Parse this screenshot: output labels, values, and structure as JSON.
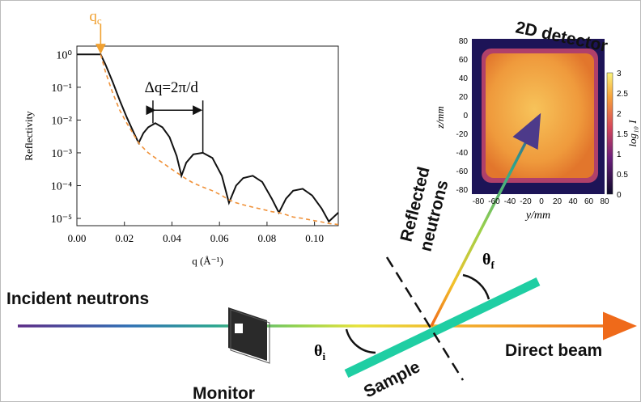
{
  "chart_data": {
    "type": "line",
    "y_label": "Reflectivity",
    "x_label": "q (Å⁻¹)",
    "log_y": true,
    "x": [
      0,
      0.01,
      0.012,
      0.015,
      0.018,
      0.021,
      0.024,
      0.026,
      0.028,
      0.03,
      0.033,
      0.036,
      0.039,
      0.042,
      0.044,
      0.046,
      0.049,
      0.053,
      0.057,
      0.061,
      0.064,
      0.067,
      0.07,
      0.074,
      0.078,
      0.082,
      0.085,
      0.088,
      0.091,
      0.095,
      0.099,
      0.103,
      0.106,
      0.11
    ],
    "series": [
      {
        "color": "#111111",
        "style": "solid",
        "values": [
          1,
          1,
          0.5,
          0.15,
          0.04,
          0.012,
          0.004,
          0.002,
          0.004,
          0.006,
          0.008,
          0.006,
          0.003,
          0.0008,
          0.0002,
          0.0005,
          0.0009,
          0.001,
          0.0007,
          0.0002,
          3e-05,
          0.0001,
          0.00017,
          0.0002,
          0.00013,
          4e-05,
          1.5e-05,
          4e-05,
          7e-05,
          8e-05,
          5e-05,
          2e-05,
          8e-06,
          1.5e-05
        ]
      },
      {
        "color": "#f0923a",
        "style": "dashed",
        "values": [
          null,
          1,
          0.3,
          0.07,
          0.02,
          0.008,
          0.0035,
          0.002,
          0.0014,
          0.001,
          0.0007,
          0.0005,
          0.00035,
          0.00025,
          0.0002,
          0.00016,
          0.00012,
          9e-05,
          7e-05,
          5e-05,
          3.7e-05,
          3e-05,
          2.6e-05,
          2.2e-05,
          1.9e-05,
          1.6e-05,
          1.5e-05,
          1.3e-05,
          1.1e-05,
          1e-05,
          8.8e-06,
          7.8e-06,
          7e-06,
          6.5e-06
        ]
      }
    ],
    "xlim": [
      0,
      0.11
    ],
    "ylim": [
      6e-06,
      1.8
    ],
    "xticks": [
      {
        "value": 0,
        "label": "0.00"
      },
      0.02,
      0.04,
      0.06,
      0.08,
      {
        "value": 0.1,
        "label": "0.10"
      }
    ],
    "yticks": [
      {
        "value": 1,
        "label": "10⁰"
      },
      {
        "value": 0.1,
        "label": "10⁻¹"
      },
      {
        "value": 0.01,
        "label": "10⁻²"
      },
      {
        "value": 0.001,
        "label": "10⁻³"
      },
      {
        "value": 0.0001,
        "label": "10⁻⁴"
      },
      {
        "value": 1e-05,
        "label": "10⁻⁵"
      }
    ],
    "annotations": {
      "qc": {
        "main": "q",
        "sub": "c"
      },
      "dq": "Δq=2π/d"
    }
  },
  "detector": {
    "title": "2D detector",
    "x_label": "y/mm",
    "y_label": "z/mm",
    "colorbar_label": "log₁₀ I",
    "x_ticks": [
      -80,
      -60,
      -40,
      -20,
      0,
      20,
      40,
      60,
      80
    ],
    "z_ticks": [
      80,
      60,
      40,
      20,
      0,
      -20,
      -40,
      -60,
      -80
    ],
    "colorbar_ticks": [
      3,
      2.5,
      2,
      1.5,
      1,
      0.5,
      0
    ]
  },
  "labels": {
    "incident": "Incident neutrons",
    "reflected": [
      "Reflected",
      "neutrons"
    ],
    "monitor": "Monitor",
    "sample": "Sample",
    "direct": "Direct beam",
    "theta_i": {
      "main": "θ",
      "sub": "i"
    },
    "theta_f": {
      "main": "θ",
      "sub": "f"
    }
  }
}
